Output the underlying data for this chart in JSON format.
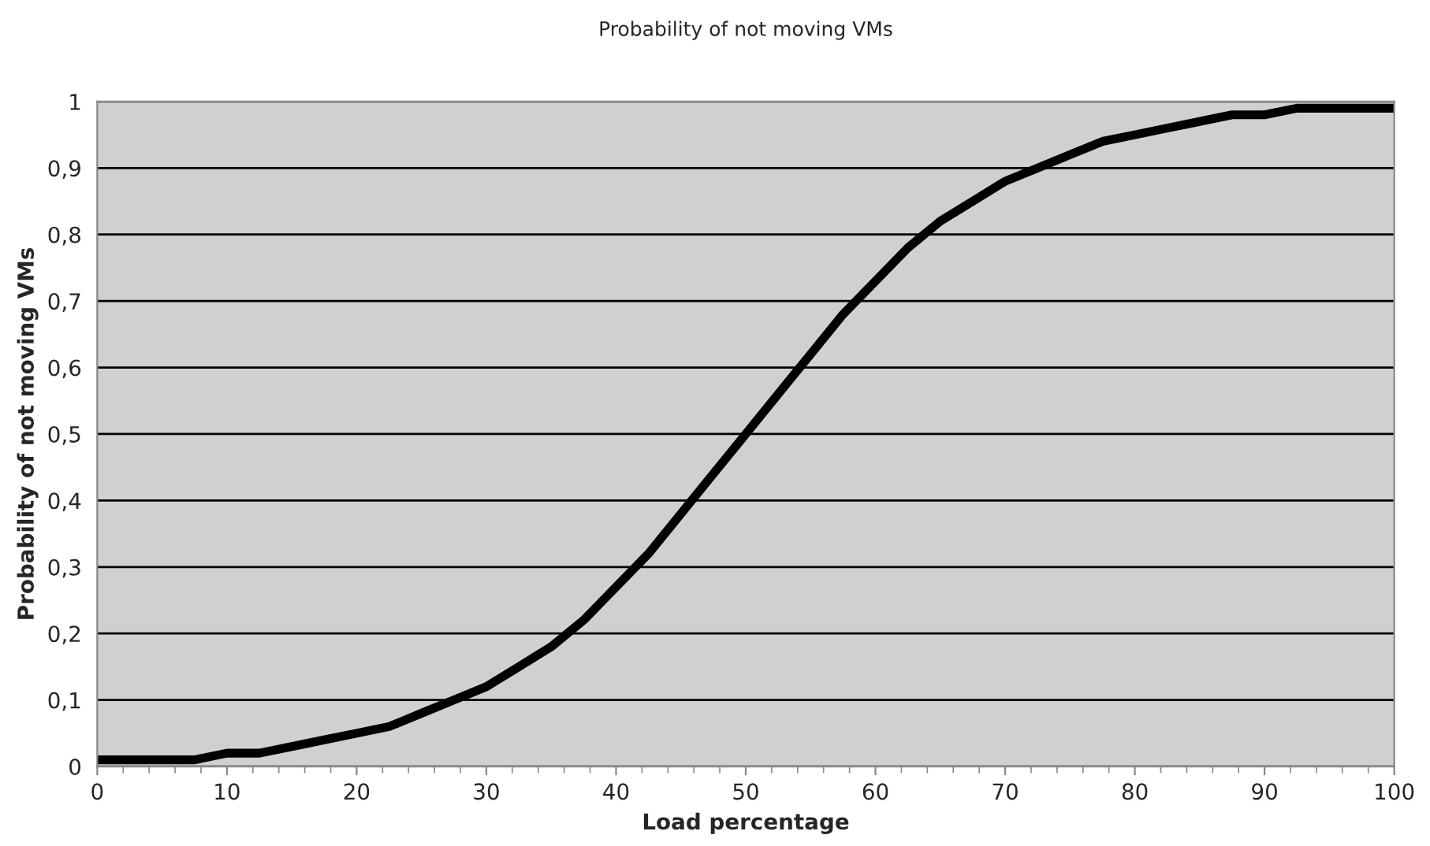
{
  "chart_data": {
    "type": "line",
    "title": "Probability of not moving VMs",
    "xlabel": "Load percentage",
    "ylabel": "Probability of not moving VMs",
    "x": [
      0,
      2.5,
      5,
      7.5,
      10,
      12.5,
      15,
      17.5,
      20,
      22.5,
      25,
      27.5,
      30,
      32.5,
      35,
      37.5,
      40,
      42.5,
      45,
      47.5,
      50,
      52.5,
      55,
      57.5,
      60,
      62.5,
      65,
      67.5,
      70,
      72.5,
      75,
      77.5,
      80,
      82.5,
      85,
      87.5,
      90,
      92.5,
      95,
      97.5,
      100
    ],
    "series": [
      {
        "color": "#000000",
        "values": [
          0.01,
          0.01,
          0.01,
          0.01,
          0.02,
          0.02,
          0.03,
          0.04,
          0.05,
          0.06,
          0.08,
          0.1,
          0.12,
          0.15,
          0.18,
          0.22,
          0.27,
          0.32,
          0.38,
          0.44,
          0.5,
          0.56,
          0.62,
          0.68,
          0.73,
          0.78,
          0.82,
          0.85,
          0.88,
          0.9,
          0.92,
          0.94,
          0.95,
          0.96,
          0.97,
          0.98,
          0.98,
          0.99,
          0.99,
          0.99,
          0.99
        ]
      }
    ],
    "xlim": [
      0,
      100
    ],
    "xticks": [
      0,
      10,
      20,
      30,
      40,
      50,
      60,
      70,
      80,
      90,
      100
    ],
    "ylim": [
      0,
      1
    ],
    "yticks": [
      0,
      {
        "value": 0.1,
        "label": "0,1"
      },
      {
        "value": 0.2,
        "label": "0,2"
      },
      {
        "value": 0.3,
        "label": "0,3"
      },
      {
        "value": 0.4,
        "label": "0,4"
      },
      {
        "value": 0.5,
        "label": "0,5"
      },
      {
        "value": 0.6,
        "label": "0,6"
      },
      {
        "value": 0.7,
        "label": "0,7"
      },
      {
        "value": 0.8,
        "label": "0,8"
      },
      {
        "value": 0.9,
        "label": "0,9"
      },
      1
    ],
    "grid": "y",
    "marker": "none",
    "line_style": "solid"
  }
}
